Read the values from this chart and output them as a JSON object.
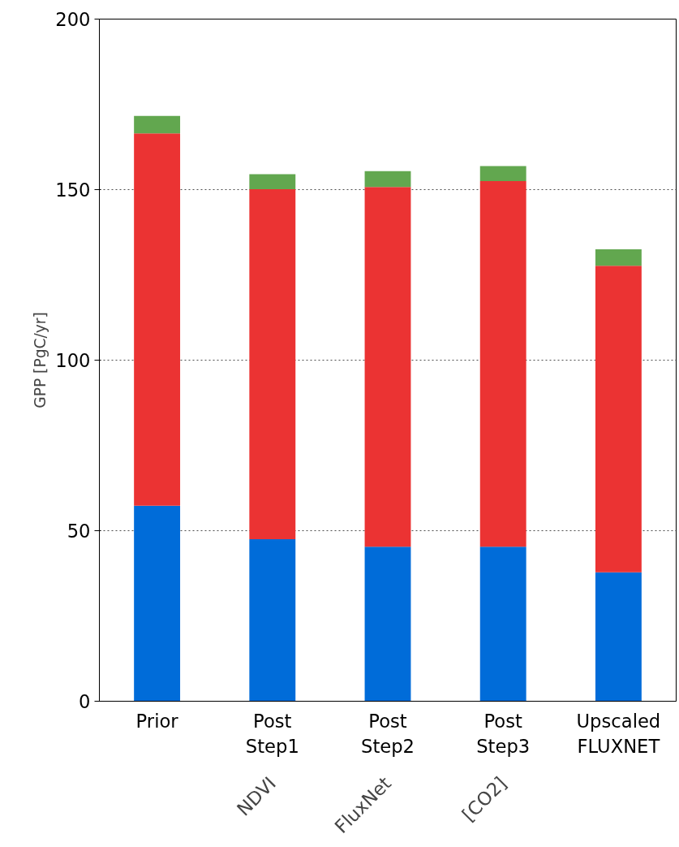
{
  "chart_data": {
    "type": "bar",
    "stacked": true,
    "ylabel": "GPP [PgC/yr]",
    "categories": [
      "Prior",
      "Post\nStep1",
      "Post\nStep2",
      "Post\nStep3",
      "Upscaled\nFLUXNET"
    ],
    "series": [
      {
        "color": "#006cd9",
        "values": [
          57.3,
          47.5,
          45.3,
          45.3,
          37.8
        ]
      },
      {
        "color": "#eb3333",
        "values": [
          109.2,
          102.6,
          105.5,
          107.2,
          89.9
        ]
      },
      {
        "color": "#62a74f",
        "values": [
          5.1,
          4.4,
          4.6,
          4.4,
          4.8
        ]
      }
    ],
    "ylim": [
      0,
      200
    ],
    "yticks": [
      0,
      50,
      100,
      150,
      200
    ],
    "grid": "y",
    "annotations": [
      "NDVI",
      "FluxNet",
      "[CO2]"
    ]
  }
}
